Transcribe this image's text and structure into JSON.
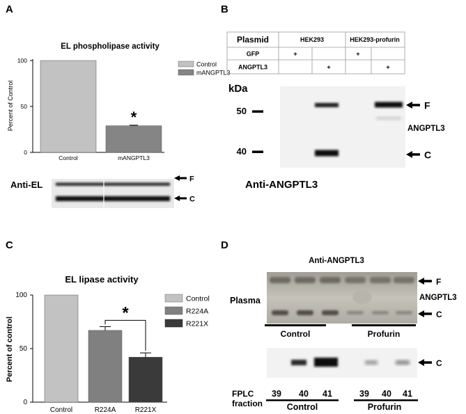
{
  "panels": {
    "A": {
      "letter": "A",
      "antibody_label": "Anti-EL",
      "band_F": "F",
      "band_C": "C"
    },
    "B": {
      "letter": "B",
      "table": {
        "header": [
          "Plasmid",
          "HEK293",
          "HEK293-profurin"
        ],
        "rows": [
          {
            "label": "GFP",
            "cells": [
              "+",
              "",
              "+",
              ""
            ]
          },
          {
            "label": "ANGPTL3",
            "cells": [
              "",
              "+",
              "",
              "+"
            ]
          }
        ]
      },
      "kda_label": "kDa",
      "markers": [
        "50",
        "40"
      ],
      "band_F": "F",
      "band_C": "C",
      "protein_label": "ANGPTL3",
      "antibody_label": "Anti-ANGPTL3"
    },
    "C": {
      "letter": "C",
      "significance": "*"
    },
    "D": {
      "letter": "D",
      "title": "Anti-ANGPTL3",
      "plasma_label": "Plasma",
      "band_F": "F",
      "band_C": "C",
      "band_C2": "C",
      "protein_label": "ANGPTL3",
      "group_labels": [
        "Control",
        "Profurin"
      ],
      "fplc_label_1": "FPLC",
      "fplc_label_2": "fraction",
      "fractions_control": [
        "39",
        "40",
        "41"
      ],
      "fractions_profurin": [
        "39",
        "40",
        "41"
      ],
      "bottom_groups": [
        "Control",
        "Profurin"
      ]
    }
  },
  "chart_data": [
    {
      "type": "bar",
      "title": "EL phospholipase activity",
      "categories": [
        "Control",
        "mANGPTL3"
      ],
      "series": [
        {
          "name": "Control",
          "values": [
            100,
            null
          ]
        },
        {
          "name": "mANGPTL3",
          "values": [
            null,
            29
          ]
        }
      ],
      "errors": [
        0,
        0.6
      ],
      "ylabel": "Percent of Control",
      "yticks": [
        "0",
        "50",
        "100"
      ],
      "ylim": [
        0,
        100
      ],
      "annotation": "*",
      "colors": [
        "#c2c2c2",
        "#858585"
      ],
      "legend": "top-right"
    },
    {
      "type": "bar",
      "title": "EL lipase activity",
      "categories": [
        "Control",
        "R224A",
        "R221X"
      ],
      "series": [
        {
          "name": "Control",
          "values": [
            100,
            null,
            null
          ]
        },
        {
          "name": "R224A",
          "values": [
            null,
            67,
            null
          ]
        },
        {
          "name": "R221X",
          "values": [
            null,
            null,
            42
          ]
        }
      ],
      "errors": [
        0,
        3.5,
        4
      ],
      "ylabel": "Percent of control",
      "yticks": [
        "0",
        "50",
        "100"
      ],
      "ylim": [
        0,
        100
      ],
      "annotation": "*",
      "colors": [
        "#c2c2c2",
        "#808080",
        "#3a3a3a"
      ],
      "legend": "right"
    }
  ]
}
